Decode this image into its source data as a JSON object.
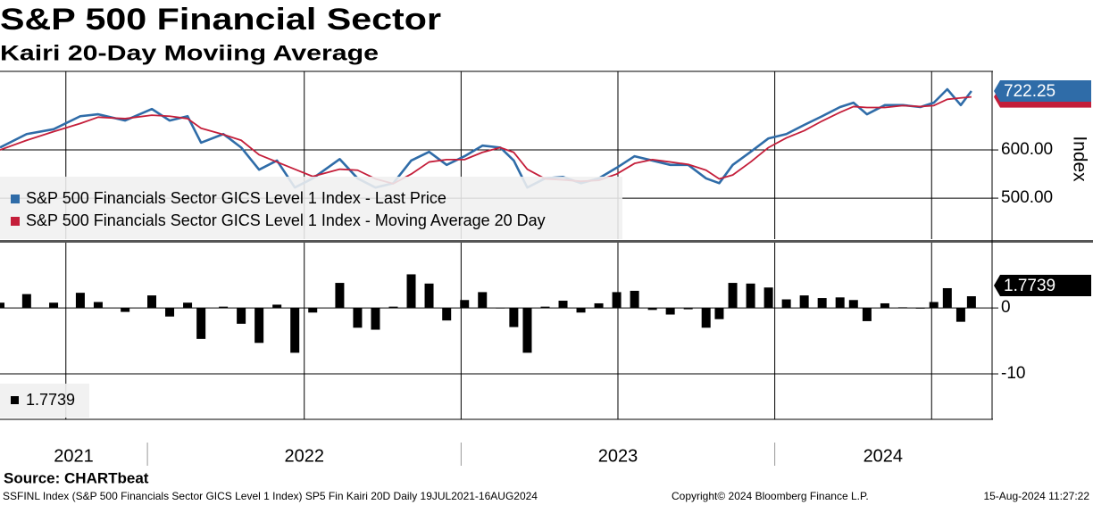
{
  "chart_data": [
    {
      "type": "line",
      "title": "S&P 500 Financial Sector",
      "subtitle": "Kairi 20-Day Moviing Average",
      "x": [
        2021.53,
        2021.615,
        2021.701,
        2021.786,
        2021.843,
        2021.929,
        2022.014,
        2022.071,
        2022.128,
        2022.171,
        2022.242,
        2022.299,
        2022.356,
        2022.413,
        2022.47,
        2022.527,
        2022.613,
        2022.67,
        2022.727,
        2022.784,
        2022.841,
        2022.898,
        2022.954,
        2023.011,
        2023.068,
        2023.125,
        2023.168,
        2023.211,
        2023.268,
        2023.325,
        2023.382,
        2023.439,
        2023.496,
        2023.553,
        2023.61,
        2023.667,
        2023.724,
        2023.781,
        2023.823,
        2023.866,
        2023.923,
        2023.98,
        2024.037,
        2024.094,
        2024.151,
        2024.208,
        2024.251,
        2024.294,
        2024.351,
        2024.408,
        2024.464,
        2024.507,
        2024.55,
        2024.593,
        2024.627
      ],
      "series": [
        {
          "name": "S&P 500 Financials Sector GICS Level 1 Index - Last Price",
          "color": "#2f6ca8",
          "values": [
            605,
            633,
            643,
            670,
            674,
            661,
            685,
            661,
            670,
            615,
            633,
            605,
            559,
            578,
            522,
            541,
            581,
            541,
            522,
            531,
            578,
            596,
            569,
            587,
            609,
            605,
            578,
            522,
            541,
            544,
            531,
            541,
            563,
            587,
            578,
            569,
            569,
            541,
            531,
            569,
            596,
            624,
            633,
            652,
            670,
            689,
            698,
            674,
            693,
            693,
            689,
            698,
            726,
            693,
            722.25
          ]
        },
        {
          "name": "S&P 500 Financials Sector GICS Level 1 Index - Moving Average 20 Day",
          "color": "#c41e3a",
          "values": [
            600,
            620,
            638,
            655,
            668,
            665,
            672,
            670,
            665,
            645,
            632,
            620,
            590,
            575,
            560,
            545,
            560,
            558,
            540,
            530,
            550,
            575,
            580,
            580,
            595,
            605,
            595,
            560,
            540,
            538,
            535,
            537,
            550,
            572,
            580,
            575,
            570,
            558,
            540,
            548,
            575,
            605,
            625,
            640,
            660,
            678,
            690,
            688,
            688,
            692,
            690,
            692,
            705,
            708,
            710
          ]
        }
      ],
      "xlim": [
        2021.53,
        2024.69
      ],
      "ylim": [
        415,
        763
      ],
      "yticks": [
        {
          "value": 500,
          "label": "500.00"
        },
        {
          "value": 600,
          "label": "600.00"
        }
      ],
      "ylabel": "Index",
      "grid": true,
      "xgrid": [
        2021.74,
        2022.5,
        2023.0,
        2023.5,
        2024.0,
        2024.5
      ]
    },
    {
      "type": "bar",
      "x": [
        2021.53,
        2021.615,
        2021.701,
        2021.786,
        2021.843,
        2021.929,
        2022.014,
        2022.071,
        2022.128,
        2022.171,
        2022.242,
        2022.299,
        2022.356,
        2022.413,
        2022.47,
        2022.527,
        2022.613,
        2022.67,
        2022.727,
        2022.784,
        2022.841,
        2022.898,
        2022.954,
        2023.011,
        2023.068,
        2023.125,
        2023.168,
        2023.211,
        2023.268,
        2023.325,
        2023.382,
        2023.439,
        2023.496,
        2023.553,
        2023.61,
        2023.667,
        2023.724,
        2023.781,
        2023.823,
        2023.866,
        2023.923,
        2023.98,
        2024.037,
        2024.094,
        2024.151,
        2024.208,
        2024.251,
        2024.294,
        2024.351,
        2024.408,
        2024.464,
        2024.507,
        2024.55,
        2024.593,
        2024.627
      ],
      "values": [
        0.8,
        2.1,
        0.8,
        2.3,
        0.9,
        -0.6,
        1.9,
        -1.3,
        0.8,
        -4.7,
        0.2,
        -2.4,
        -5.3,
        0.5,
        -6.8,
        -0.7,
        3.8,
        -3.0,
        -3.3,
        0.2,
        5.1,
        3.7,
        -1.9,
        1.2,
        2.4,
        0,
        -2.9,
        -6.8,
        0.2,
        1.1,
        -0.7,
        0.7,
        2.4,
        2.6,
        -0.3,
        -1.0,
        -0.2,
        -3.0,
        -1.7,
        3.8,
        3.7,
        3.1,
        1.3,
        1.9,
        1.5,
        1.6,
        1.2,
        -2.0,
        0.7,
        0.1,
        -0.1,
        0.9,
        3.0,
        -2.1,
        1.7739
      ],
      "color": "#000000",
      "xlim": [
        2021.53,
        2024.69
      ],
      "ylim": [
        -16.9,
        9.9
      ],
      "yticks": [
        -10,
        0
      ],
      "grid": true,
      "xgrid": [
        2021.74,
        2022.5,
        2023.0,
        2023.5,
        2024.0,
        2024.5
      ],
      "xticks": [
        2022,
        2023,
        2024
      ],
      "year_labels": [
        "2021",
        "2022",
        "2023",
        "2024"
      ]
    }
  ],
  "source": "Source: CHARTbeat",
  "footer": {
    "left": "SSFINL Index (S&P 500 Financials Sector GICS Level 1 Index) SP5 Fin Kairi 20D  Daily 19JUL2021-16AUG2024",
    "center": "Copyright© 2024 Bloomberg Finance L.P.",
    "right": "15-Aug-2024 11:27:22"
  }
}
